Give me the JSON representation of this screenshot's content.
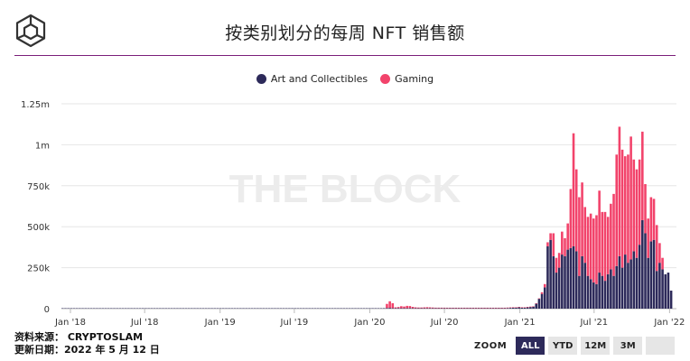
{
  "header": {
    "title": "按类别划分的每周 NFT 销售额"
  },
  "watermark": "THE BLOCK",
  "legend": [
    {
      "label": "Art and Collectibles",
      "color": "#2d2a5a"
    },
    {
      "label": "Gaming",
      "color": "#f2436b"
    }
  ],
  "footer": {
    "source_line": "资料来源： CRYPTOSLAM",
    "date_line": "更新日期：2022 年 5 月 12 日"
  },
  "zoom": {
    "label": "ZOOM",
    "buttons": [
      "ALL",
      "YTD",
      "12M",
      "3M"
    ],
    "active": "ALL"
  },
  "chart_data": {
    "type": "bar",
    "stacked": true,
    "x_start": "2017-12-10",
    "x_step_days": 7,
    "xtick_labels": [
      "Jan '18",
      "Jul '18",
      "Jan '19",
      "Jul '19",
      "Jan '20",
      "Jul '20",
      "Jan '21",
      "Jul '21",
      "Jan '22"
    ],
    "xtick_dates": [
      "2018-01-01",
      "2018-07-01",
      "2019-01-01",
      "2019-07-01",
      "2020-01-01",
      "2020-07-01",
      "2021-01-01",
      "2021-07-01",
      "2022-01-01"
    ],
    "ytick_labels": [
      "0",
      "250k",
      "500k",
      "750k",
      "1m",
      "1.25m"
    ],
    "ylim": [
      0,
      1250000
    ],
    "grid": true,
    "legend_position": "top-center",
    "series": [
      {
        "name": "Art and Collectibles",
        "color": "#2d2a5a",
        "values": [
          2000,
          2000,
          2000,
          2000,
          2000,
          2000,
          2000,
          2000,
          2000,
          2000,
          2000,
          2000,
          2000,
          2000,
          2000,
          2000,
          2000,
          2000,
          2000,
          2000,
          2000,
          2000,
          2000,
          2000,
          2000,
          2000,
          2000,
          2000,
          2000,
          2000,
          2000,
          2000,
          2000,
          2000,
          2000,
          2000,
          2000,
          2000,
          2000,
          2000,
          2000,
          2000,
          2000,
          2000,
          2000,
          2000,
          2000,
          2000,
          2000,
          2000,
          2000,
          2000,
          2000,
          2000,
          2000,
          2000,
          2000,
          2000,
          2000,
          2000,
          2000,
          2000,
          2000,
          2000,
          2000,
          2000,
          2000,
          2000,
          2000,
          2000,
          2000,
          2000,
          2000,
          2000,
          2000,
          2000,
          2000,
          2000,
          2000,
          2000,
          2000,
          2000,
          2000,
          2000,
          2000,
          2000,
          2000,
          2000,
          2000,
          2000,
          2000,
          2000,
          2000,
          2000,
          2000,
          2000,
          2000,
          2000,
          2000,
          2000,
          2000,
          2000,
          2000,
          2000,
          2000,
          2000,
          2000,
          2000,
          2000,
          2000,
          2000,
          2000,
          3000,
          4000,
          5000,
          3000,
          3000,
          4000,
          3000,
          3000,
          3000,
          4000,
          3000,
          3000,
          3000,
          3000,
          3000,
          3000,
          3000,
          3000,
          3000,
          3000,
          3000,
          3000,
          3000,
          3000,
          3000,
          3000,
          3000,
          3000,
          3000,
          3000,
          3000,
          3000,
          3000,
          3000,
          3000,
          3000,
          3000,
          3000,
          3000,
          3000,
          3000,
          3000,
          3000,
          4000,
          5000,
          6000,
          6000,
          8000,
          6000,
          6000,
          8000,
          10000,
          12000,
          30000,
          60000,
          90000,
          130000,
          380000,
          420000,
          320000,
          220000,
          250000,
          330000,
          320000,
          360000,
          370000,
          380000,
          350000,
          200000,
          320000,
          280000,
          200000,
          180000,
          160000,
          150000,
          220000,
          200000,
          170000,
          210000,
          240000,
          200000,
          260000,
          320000,
          250000,
          330000,
          280000,
          300000,
          350000,
          310000,
          390000,
          540000,
          460000,
          310000,
          410000,
          420000,
          230000,
          280000,
          240000,
          210000,
          220000,
          110000
        ]
      },
      {
        "name": "Gaming",
        "color": "#f2436b",
        "values": [
          0,
          0,
          0,
          0,
          0,
          0,
          0,
          0,
          0,
          0,
          0,
          0,
          0,
          0,
          0,
          0,
          0,
          0,
          0,
          0,
          0,
          0,
          0,
          0,
          0,
          0,
          0,
          0,
          0,
          0,
          0,
          0,
          0,
          0,
          0,
          0,
          0,
          0,
          0,
          0,
          0,
          0,
          0,
          0,
          0,
          0,
          0,
          0,
          0,
          0,
          0,
          0,
          0,
          0,
          0,
          0,
          0,
          0,
          0,
          0,
          0,
          0,
          0,
          0,
          0,
          0,
          0,
          0,
          0,
          0,
          0,
          0,
          0,
          0,
          0,
          0,
          0,
          0,
          0,
          0,
          0,
          0,
          0,
          0,
          0,
          0,
          0,
          0,
          0,
          0,
          0,
          0,
          0,
          0,
          0,
          0,
          0,
          0,
          0,
          0,
          0,
          0,
          0,
          0,
          0,
          0,
          0,
          0,
          0,
          0,
          0,
          0,
          0,
          25000,
          40000,
          30000,
          5000,
          6000,
          12000,
          10000,
          14000,
          12000,
          8000,
          5000,
          4000,
          4000,
          5000,
          6000,
          5000,
          4000,
          3000,
          3000,
          3000,
          3000,
          2000,
          2000,
          2000,
          2000,
          2000,
          2000,
          2000,
          2000,
          2000,
          2000,
          2000,
          2000,
          2000,
          2000,
          2000,
          2000,
          2000,
          2000,
          2000,
          2000,
          2000,
          2000,
          2000,
          2000,
          2000,
          2000,
          2000,
          2000,
          2000,
          2000,
          2000,
          2000,
          2000,
          10000,
          20000,
          25000,
          40000,
          140000,
          90000,
          90000,
          140000,
          110000,
          160000,
          360000,
          690000,
          500000,
          480000,
          450000,
          340000,
          360000,
          400000,
          390000,
          420000,
          500000,
          390000,
          420000,
          350000,
          400000,
          500000,
          680000,
          790000,
          720000,
          600000,
          660000,
          750000,
          560000,
          540000,
          520000,
          540000,
          300000,
          240000,
          270000,
          250000,
          280000,
          120000,
          70000
        ]
      }
    ]
  }
}
